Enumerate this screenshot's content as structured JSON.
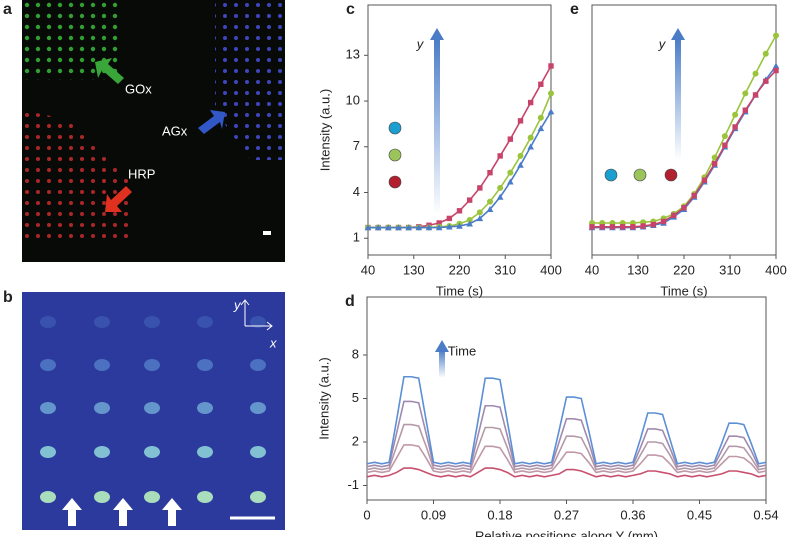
{
  "chart_data": [
    {
      "type": "line",
      "label": "c",
      "xlabel": "Time (s)",
      "ylabel": "Intensity (a.u.)",
      "annotation": "y",
      "x": [
        40,
        60,
        80,
        100,
        120,
        140,
        160,
        180,
        200,
        220,
        240,
        260,
        280,
        300,
        320,
        340,
        360,
        380,
        400
      ],
      "xlim": [
        40,
        400
      ],
      "xticks": [
        40,
        130,
        220,
        310,
        400
      ],
      "ylim": [
        -0.1,
        16.3
      ],
      "yticks": [
        1,
        4,
        7,
        10,
        13
      ],
      "series": [
        {
          "color": "#c8436a",
          "marker": "square",
          "values": [
            1.7,
            1.7,
            1.7,
            1.7,
            1.7,
            1.75,
            1.85,
            2.0,
            2.3,
            2.8,
            3.5,
            4.3,
            5.3,
            6.4,
            7.5,
            8.7,
            9.9,
            11.1,
            12.3
          ]
        },
        {
          "color": "#9ac43c",
          "marker": "circle",
          "values": [
            1.7,
            1.7,
            1.7,
            1.7,
            1.7,
            1.7,
            1.7,
            1.75,
            1.8,
            1.95,
            2.2,
            2.7,
            3.4,
            4.3,
            5.3,
            6.4,
            7.6,
            8.9,
            10.5
          ]
        },
        {
          "color": "#4a7cc8",
          "marker": "triangle",
          "values": [
            1.7,
            1.7,
            1.7,
            1.7,
            1.7,
            1.7,
            1.7,
            1.7,
            1.75,
            1.8,
            1.95,
            2.3,
            2.9,
            3.7,
            4.7,
            5.8,
            7.0,
            8.2,
            9.3
          ]
        }
      ]
    },
    {
      "type": "line",
      "label": "e",
      "xlabel": "Time (s)",
      "annotation": "y",
      "x": [
        40,
        60,
        80,
        100,
        120,
        140,
        160,
        180,
        200,
        220,
        240,
        260,
        280,
        300,
        320,
        340,
        360,
        380,
        400
      ],
      "xlim": [
        40,
        400
      ],
      "xticks": [
        40,
        130,
        220,
        310,
        400
      ],
      "ylim": [
        -0.1,
        16.3
      ],
      "series": [
        {
          "color": "#9ac43c",
          "marker": "circle",
          "values": [
            2.0,
            2.0,
            2.0,
            2.0,
            2.0,
            2.05,
            2.1,
            2.3,
            2.6,
            3.1,
            3.9,
            5.0,
            6.3,
            7.7,
            9.1,
            10.5,
            11.8,
            13.1,
            14.3
          ]
        },
        {
          "color": "#4a7cc8",
          "marker": "triangle",
          "values": [
            1.7,
            1.7,
            1.7,
            1.7,
            1.7,
            1.75,
            1.85,
            2.0,
            2.4,
            2.9,
            3.7,
            4.7,
            5.8,
            7.0,
            8.2,
            9.3,
            10.4,
            11.4,
            12.3
          ]
        },
        {
          "color": "#c8436a",
          "marker": "square",
          "values": [
            1.75,
            1.75,
            1.75,
            1.75,
            1.75,
            1.8,
            1.9,
            2.1,
            2.5,
            3.0,
            3.8,
            4.8,
            5.9,
            7.1,
            8.3,
            9.4,
            10.4,
            11.3,
            12.0
          ]
        }
      ]
    },
    {
      "type": "line",
      "label": "d",
      "xlabel": "Relative  positions along Y (mm)",
      "ylabel": "Intensity (a.u.)",
      "annotation": "Time",
      "x": [
        0,
        0.01,
        0.02,
        0.03,
        0.04,
        0.05,
        0.06,
        0.07,
        0.08,
        0.09,
        0.1,
        0.11,
        0.12,
        0.13,
        0.14,
        0.15,
        0.16,
        0.17,
        0.18,
        0.19,
        0.2,
        0.21,
        0.22,
        0.23,
        0.24,
        0.25,
        0.26,
        0.27,
        0.28,
        0.29,
        0.3,
        0.31,
        0.32,
        0.33,
        0.34,
        0.35,
        0.36,
        0.37,
        0.38,
        0.39,
        0.4,
        0.41,
        0.42,
        0.43,
        0.44,
        0.45,
        0.46,
        0.47,
        0.48,
        0.49,
        0.5,
        0.51,
        0.52,
        0.53,
        0.54
      ],
      "xlim": [
        0,
        0.54
      ],
      "xticks": [
        0,
        0.09,
        0.18,
        0.27,
        0.36,
        0.45,
        0.54
      ],
      "ylim": [
        -2,
        12
      ],
      "yticks": [
        -1,
        2,
        5,
        8
      ],
      "series": [
        {
          "color": "#c8506e",
          "marker": "none",
          "values": [
            -0.4,
            -0.3,
            -0.4,
            -0.3,
            -0.1,
            0.2,
            0.2,
            0.1,
            -0.1,
            -0.3,
            -0.4,
            -0.3,
            -0.4,
            -0.3,
            -0.4,
            -0.1,
            0.2,
            0.2,
            0.1,
            -0.1,
            -0.4,
            -0.3,
            -0.4,
            -0.3,
            -0.4,
            -0.3,
            -0.2,
            0.1,
            0.1,
            0,
            -0.2,
            -0.4,
            -0.3,
            -0.4,
            -0.3,
            -0.4,
            -0.3,
            -0.2,
            0,
            0,
            -0.1,
            -0.2,
            -0.4,
            -0.3,
            -0.4,
            -0.3,
            -0.4,
            -0.3,
            -0.2,
            0,
            0,
            -0.1,
            -0.2,
            -0.4,
            -0.3
          ]
        },
        {
          "color": "#c098a8",
          "marker": "none",
          "values": [
            -0.1,
            0,
            -0.1,
            0,
            0.9,
            1.8,
            1.8,
            1.7,
            0.9,
            0,
            -0.1,
            0,
            -0.1,
            0,
            -0.1,
            0.8,
            1.7,
            1.7,
            1.6,
            0.8,
            -0.1,
            0,
            -0.1,
            0,
            -0.1,
            0,
            0.6,
            1.3,
            1.3,
            1.2,
            0.6,
            -0.1,
            0,
            -0.1,
            0,
            -0.1,
            0,
            0.5,
            1.1,
            1.1,
            1.0,
            0.5,
            -0.1,
            0,
            -0.1,
            0,
            -0.1,
            0,
            0.5,
            1.0,
            1.0,
            0.9,
            0.5,
            -0.1,
            0
          ]
        },
        {
          "color": "#b49aa8",
          "marker": "none",
          "values": [
            0.1,
            0.2,
            0.1,
            0.2,
            1.7,
            3.2,
            3.2,
            3.1,
            1.7,
            0.2,
            0.1,
            0.2,
            0.1,
            0.2,
            0.1,
            1.6,
            3.0,
            3.0,
            2.9,
            1.6,
            0.1,
            0.2,
            0.1,
            0.2,
            0.1,
            0.2,
            1.3,
            2.4,
            2.4,
            2.3,
            1.3,
            0.1,
            0.2,
            0.1,
            0.2,
            0.1,
            0.2,
            1.1,
            2.0,
            2.0,
            1.9,
            1.1,
            0.1,
            0.2,
            0.1,
            0.2,
            0.1,
            0.2,
            0.9,
            1.7,
            1.7,
            1.6,
            0.9,
            0.1,
            0.2
          ]
        },
        {
          "color": "#a08ab0",
          "marker": "none",
          "values": [
            0.3,
            0.4,
            0.3,
            0.4,
            2.6,
            4.8,
            4.8,
            4.7,
            2.6,
            0.4,
            0.3,
            0.4,
            0.3,
            0.4,
            0.3,
            2.4,
            4.5,
            4.5,
            4.4,
            2.4,
            0.3,
            0.4,
            0.3,
            0.4,
            0.3,
            0.4,
            2.0,
            3.6,
            3.6,
            3.5,
            2.0,
            0.3,
            0.4,
            0.3,
            0.4,
            0.3,
            0.4,
            1.6,
            2.9,
            2.9,
            2.8,
            1.6,
            0.3,
            0.4,
            0.3,
            0.4,
            0.3,
            0.4,
            1.4,
            2.4,
            2.4,
            2.3,
            1.4,
            0.3,
            0.4
          ]
        },
        {
          "color": "#5b8fd6",
          "marker": "none",
          "values": [
            0.5,
            0.6,
            0.5,
            0.6,
            3.5,
            6.5,
            6.5,
            6.4,
            3.5,
            0.6,
            0.5,
            0.6,
            0.5,
            0.6,
            0.5,
            3.4,
            6.4,
            6.4,
            6.3,
            3.4,
            0.5,
            0.6,
            0.5,
            0.6,
            0.5,
            0.6,
            2.8,
            5.1,
            5.1,
            5.0,
            2.8,
            0.5,
            0.6,
            0.5,
            0.6,
            0.5,
            0.6,
            2.2,
            4.0,
            4.0,
            3.9,
            2.2,
            0.5,
            0.6,
            0.5,
            0.6,
            0.5,
            0.6,
            1.9,
            3.3,
            3.3,
            3.2,
            1.9,
            0.5,
            0.6
          ]
        }
      ]
    }
  ],
  "image_a": {
    "label": "a",
    "annotations": [
      "GOx",
      "AGx",
      "HRP"
    ]
  },
  "image_b": {
    "label": "b",
    "axis_labels": [
      "y",
      "x"
    ]
  }
}
